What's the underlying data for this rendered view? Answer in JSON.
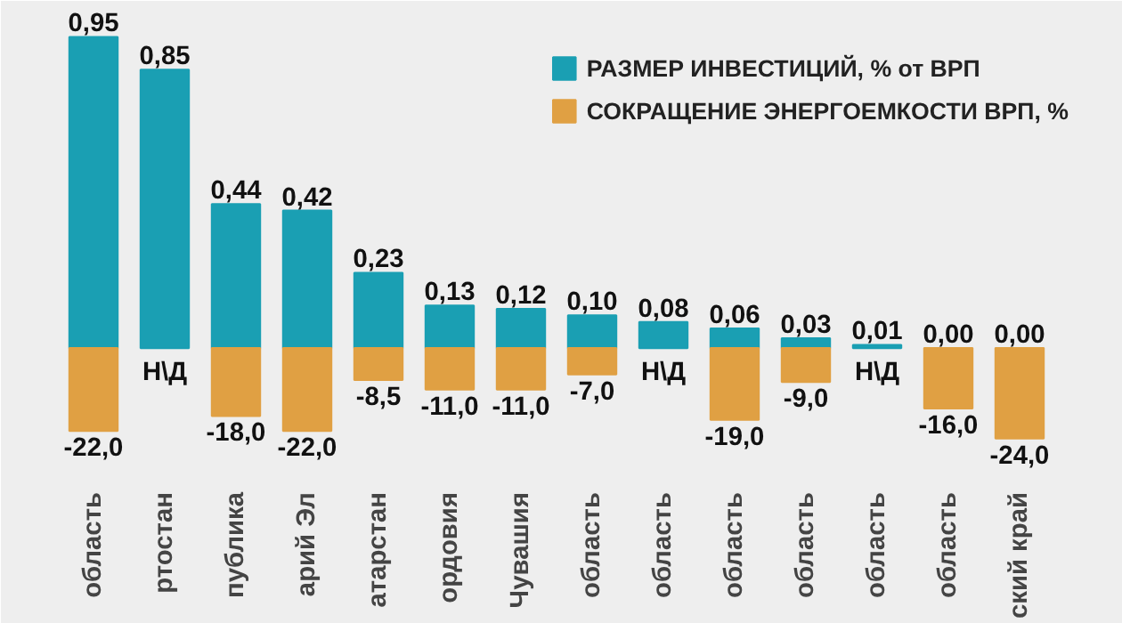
{
  "chart_data": {
    "type": "bar",
    "categories": [
      "область",
      "ртостан",
      "публика",
      "арий Эл",
      "атарстан",
      "ордовия",
      "Чувашия",
      "область",
      "область",
      "область",
      "область",
      "область",
      "область",
      "ский край"
    ],
    "ylim": [
      -0.38,
      1.06
    ],
    "y2lim": [
      -33,
      92
    ],
    "tick_labels": "x",
    "stacked": true,
    "grid": false,
    "legend": "top right",
    "series": [
      {
        "name": "РАЗМЕР ИНВЕСТИЦИЙ, % от ВРП",
        "color": "#1a9fb3",
        "values": [
          0.95,
          0.85,
          0.44,
          0.42,
          0.23,
          0.13,
          0.12,
          0.1,
          0.08,
          0.06,
          0.03,
          0.01,
          0.0,
          0.0
        ],
        "value_labels": [
          "0,95",
          "0,85",
          "0,44",
          "0,42",
          "0,23",
          "0,13",
          "0,12",
          "0,10",
          "0,08",
          "0,06",
          "0,03",
          "0,01",
          "0,00",
          "0,00"
        ]
      },
      {
        "name": "СОКРАЩЕНИЕ ЭНЕРГОЕМКОСТИ ВРП, %",
        "color": "#e0a043",
        "axis": "y2",
        "values": [
          -22.0,
          null,
          -18.0,
          -22.0,
          -8.5,
          -11.0,
          -11.0,
          -7.0,
          null,
          -19.0,
          -9.0,
          null,
          -16.0,
          -24.0
        ],
        "value_labels": [
          "-22,0",
          "Н\\Д",
          "-18,0",
          "-22,0",
          "-8,5",
          "-11,0",
          "-11,0",
          "-7,0",
          "Н\\Д",
          "-19,0",
          "-9,0",
          "Н\\Д",
          "-16,0",
          "-24,0"
        ]
      }
    ]
  }
}
